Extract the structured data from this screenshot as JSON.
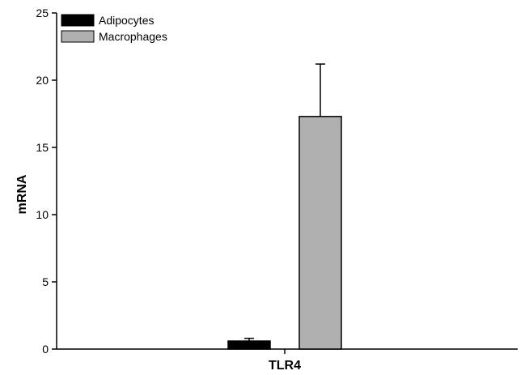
{
  "chart_data": {
    "type": "bar",
    "categories": [
      "TLR4"
    ],
    "series": [
      {
        "name": "Adipocytes",
        "values": [
          0.6
        ],
        "error": [
          0.2
        ],
        "color": "#000000"
      },
      {
        "name": "Macrophages",
        "values": [
          17.3
        ],
        "error": [
          3.9
        ],
        "color": "#b0b0b0"
      }
    ],
    "title": "",
    "xlabel": "",
    "ylabel": "mRNA",
    "ylim": [
      0,
      25
    ],
    "yticks": [
      "0",
      "5",
      "10",
      "15",
      "20",
      "25"
    ],
    "grid": false,
    "legend_position": "top-left"
  }
}
